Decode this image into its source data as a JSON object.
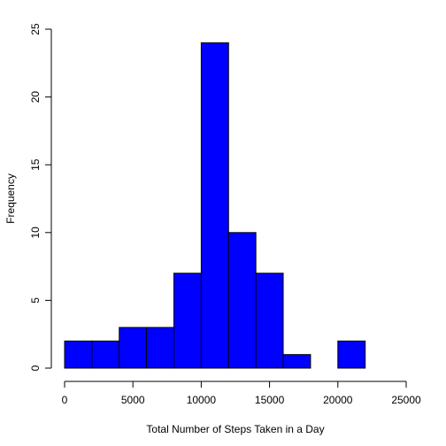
{
  "chart_data": {
    "type": "bar",
    "title": "",
    "xlabel": "Total Number of Steps Taken in a Day",
    "ylabel": "Frequency",
    "bins": [
      {
        "start": 0,
        "end": 2000,
        "count": 2
      },
      {
        "start": 2000,
        "end": 4000,
        "count": 2
      },
      {
        "start": 4000,
        "end": 6000,
        "count": 3
      },
      {
        "start": 6000,
        "end": 8000,
        "count": 3
      },
      {
        "start": 8000,
        "end": 10000,
        "count": 7
      },
      {
        "start": 10000,
        "end": 12000,
        "count": 24
      },
      {
        "start": 12000,
        "end": 14000,
        "count": 10
      },
      {
        "start": 14000,
        "end": 16000,
        "count": 7
      },
      {
        "start": 16000,
        "end": 18000,
        "count": 1
      },
      {
        "start": 18000,
        "end": 20000,
        "count": 0
      },
      {
        "start": 20000,
        "end": 22000,
        "count": 2
      }
    ],
    "xlim": [
      0,
      25000
    ],
    "ylim": [
      0,
      25
    ],
    "xticks": [
      0,
      5000,
      10000,
      15000,
      20000,
      25000
    ],
    "xtick_labels": [
      "0",
      "5000",
      "10000",
      "15000",
      "20000",
      "25000"
    ],
    "yticks": [
      0,
      5,
      10,
      15,
      20,
      25
    ],
    "ytick_labels": [
      "0",
      "5",
      "10",
      "15",
      "20",
      "25"
    ],
    "bar_color": "#0000ff",
    "grid": false,
    "legend": "none"
  }
}
